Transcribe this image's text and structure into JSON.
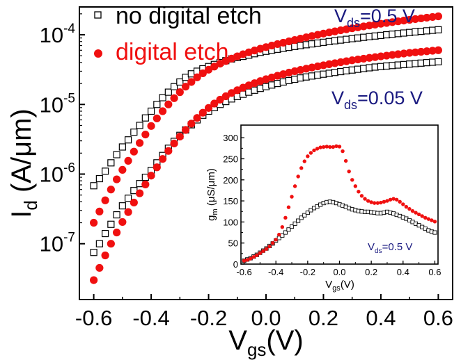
{
  "chart_data": [
    {
      "type": "scatter",
      "xlabel_main": "V",
      "xlabel_sub": "gs",
      "xlabel_unit": "(V)",
      "ylabel_main": "I",
      "ylabel_sub": "d",
      "ylabel_unit": " (A/μm)",
      "xlim": [
        -0.65,
        0.65
      ],
      "ylim": [
        1.58e-08,
        0.000251
      ],
      "yscale": "log",
      "x_ticks": [
        -0.6,
        -0.4,
        -0.2,
        0.0,
        0.2,
        0.4,
        0.6
      ],
      "x_tick_labels": [
        "-0.6",
        "-0.4",
        "-0.2",
        "0.0",
        "0.2",
        "0.4",
        "0.6"
      ],
      "y_ticks": [
        1e-07,
        1e-06,
        1e-05,
        0.0001
      ],
      "y_tick_mantissa": [
        "10",
        "10",
        "10",
        "10"
      ],
      "y_tick_exponent": [
        "-7",
        "-6",
        "-5",
        "-4"
      ],
      "legend_placement": "top-left",
      "annotations": [
        {
          "main": "V",
          "sub": "ds",
          "rest": "=0.5 V"
        },
        {
          "main": "V",
          "sub": "ds",
          "rest": "=0.05 V"
        }
      ],
      "series": [
        {
          "name": "no digital etch",
          "marker": "open-square",
          "color": "#000000",
          "curves": [
            {
              "vds": "0.5 V",
              "x": [
                -0.6,
                -0.58,
                -0.56,
                -0.54,
                -0.52,
                -0.5,
                -0.48,
                -0.46,
                -0.44,
                -0.42,
                -0.4,
                -0.38,
                -0.36,
                -0.34,
                -0.32,
                -0.3,
                -0.28,
                -0.26,
                -0.24,
                -0.22,
                -0.2,
                -0.18,
                -0.16,
                -0.14,
                -0.12,
                -0.1,
                -0.08,
                -0.06,
                -0.04,
                -0.02,
                0.0,
                0.02,
                0.04,
                0.06,
                0.08,
                0.1,
                0.12,
                0.14,
                0.16,
                0.18,
                0.2,
                0.22,
                0.24,
                0.26,
                0.28,
                0.3,
                0.32,
                0.34,
                0.36,
                0.38,
                0.4,
                0.42,
                0.44,
                0.46,
                0.48,
                0.5,
                0.52,
                0.54,
                0.56,
                0.58,
                0.6
              ],
              "y": [
                6.8e-07,
                8.6e-07,
                1.1e-06,
                1.45e-06,
                1.9e-06,
                2.45e-06,
                3.1e-06,
                4e-06,
                5e-06,
                6.4e-06,
                8e-06,
                1e-05,
                1.25e-05,
                1.5e-05,
                1.8e-05,
                2.1e-05,
                2.45e-05,
                2.75e-05,
                3e-05,
                3.25e-05,
                3.5e-05,
                3.75e-05,
                4e-05,
                4.25e-05,
                4.5e-05,
                4.7e-05,
                4.9e-05,
                5.1e-05,
                5.35e-05,
                5.6e-05,
                5.8e-05,
                6e-05,
                6.2e-05,
                6.4e-05,
                6.6e-05,
                6.8e-05,
                7e-05,
                7.2e-05,
                7.4e-05,
                7.6e-05,
                7.8e-05,
                8e-05,
                8.2e-05,
                8.4e-05,
                8.6e-05,
                8.8e-05,
                9e-05,
                9.2e-05,
                9.4e-05,
                9.6e-05,
                9.8e-05,
                0.0001,
                0.000102,
                0.000104,
                0.000106,
                0.000108,
                0.00011,
                0.000112,
                0.000114,
                0.000116,
                0.000118
              ]
            },
            {
              "vds": "0.05 V",
              "x": [
                -0.6,
                -0.58,
                -0.56,
                -0.54,
                -0.52,
                -0.5,
                -0.48,
                -0.46,
                -0.44,
                -0.42,
                -0.4,
                -0.38,
                -0.36,
                -0.34,
                -0.32,
                -0.3,
                -0.28,
                -0.26,
                -0.24,
                -0.22,
                -0.2,
                -0.18,
                -0.16,
                -0.14,
                -0.12,
                -0.1,
                -0.08,
                -0.06,
                -0.04,
                -0.02,
                0.0,
                0.02,
                0.04,
                0.06,
                0.08,
                0.1,
                0.12,
                0.14,
                0.16,
                0.18,
                0.2,
                0.22,
                0.24,
                0.26,
                0.28,
                0.3,
                0.32,
                0.34,
                0.36,
                0.38,
                0.4,
                0.42,
                0.44,
                0.46,
                0.48,
                0.5,
                0.52,
                0.54,
                0.56,
                0.58,
                0.6
              ],
              "y": [
                7.5e-08,
                1e-07,
                1.4e-07,
                1.9e-07,
                2.6e-07,
                3.5e-07,
                4.5e-07,
                5.8e-07,
                7.3e-07,
                9e-07,
                1.13e-06,
                1.45e-06,
                1.85e-06,
                2.35e-06,
                2.95e-06,
                3.6e-06,
                4.3e-06,
                5.1e-06,
                6e-06,
                7e-06,
                8e-06,
                9e-06,
                1e-05,
                1.1e-05,
                1.2e-05,
                1.3e-05,
                1.4e-05,
                1.5e-05,
                1.6e-05,
                1.7e-05,
                1.8e-05,
                1.9e-05,
                2e-05,
                2.1e-05,
                2.2e-05,
                2.3e-05,
                2.4e-05,
                2.48e-05,
                2.56e-05,
                2.64e-05,
                2.72e-05,
                2.8e-05,
                2.88e-05,
                2.96e-05,
                3.04e-05,
                3.12e-05,
                3.2e-05,
                3.28e-05,
                3.36e-05,
                3.44e-05,
                3.5e-05,
                3.56e-05,
                3.62e-05,
                3.68e-05,
                3.74e-05,
                3.8e-05,
                3.86e-05,
                3.92e-05,
                3.98e-05,
                4.04e-05,
                4.1e-05
              ]
            }
          ]
        },
        {
          "name": "digital etch",
          "marker": "filled-circle",
          "color": "#f01010",
          "curves": [
            {
              "vds": "0.5 V",
              "x": [
                -0.6,
                -0.58,
                -0.56,
                -0.54,
                -0.52,
                -0.5,
                -0.48,
                -0.46,
                -0.44,
                -0.42,
                -0.4,
                -0.38,
                -0.36,
                -0.34,
                -0.32,
                -0.3,
                -0.28,
                -0.26,
                -0.24,
                -0.22,
                -0.2,
                -0.18,
                -0.16,
                -0.14,
                -0.12,
                -0.1,
                -0.08,
                -0.06,
                -0.04,
                -0.02,
                0.0,
                0.02,
                0.04,
                0.06,
                0.08,
                0.1,
                0.12,
                0.14,
                0.16,
                0.18,
                0.2,
                0.22,
                0.24,
                0.26,
                0.28,
                0.3,
                0.32,
                0.34,
                0.36,
                0.38,
                0.4,
                0.42,
                0.44,
                0.46,
                0.48,
                0.5,
                0.52,
                0.54,
                0.56,
                0.58,
                0.6
              ],
              "y": [
                2e-07,
                2.9e-07,
                4.2e-07,
                6e-07,
                8.4e-07,
                1.15e-06,
                1.55e-06,
                2.1e-06,
                2.8e-06,
                3.7e-06,
                4.9e-06,
                6.3e-06,
                8e-06,
                1e-05,
                1.23e-05,
                1.5e-05,
                1.8e-05,
                2.1e-05,
                2.45e-05,
                2.8e-05,
                3.15e-05,
                3.5e-05,
                3.85e-05,
                4.2e-05,
                4.55e-05,
                4.9e-05,
                5.25e-05,
                5.6e-05,
                5.95e-05,
                6.3e-05,
                6.65e-05,
                7e-05,
                7.35e-05,
                7.7e-05,
                8.05e-05,
                8.4e-05,
                8.8e-05,
                9.2e-05,
                9.6e-05,
                0.0001,
                0.000104,
                0.000108,
                0.000112,
                0.000116,
                0.00012,
                0.000124,
                0.000128,
                0.000132,
                0.000136,
                0.00014,
                0.000144,
                0.000148,
                0.000152,
                0.000156,
                0.00016,
                0.000164,
                0.000168,
                0.000172,
                0.000176,
                0.00018,
                0.000184
              ]
            },
            {
              "vds": "0.05 V",
              "x": [
                -0.6,
                -0.58,
                -0.56,
                -0.54,
                -0.52,
                -0.5,
                -0.48,
                -0.46,
                -0.44,
                -0.42,
                -0.4,
                -0.38,
                -0.36,
                -0.34,
                -0.32,
                -0.3,
                -0.28,
                -0.26,
                -0.24,
                -0.22,
                -0.2,
                -0.18,
                -0.16,
                -0.14,
                -0.12,
                -0.1,
                -0.08,
                -0.06,
                -0.04,
                -0.02,
                0.0,
                0.02,
                0.04,
                0.06,
                0.08,
                0.1,
                0.12,
                0.14,
                0.16,
                0.18,
                0.2,
                0.22,
                0.24,
                0.26,
                0.28,
                0.3,
                0.32,
                0.34,
                0.36,
                0.38,
                0.4,
                0.42,
                0.44,
                0.46,
                0.48,
                0.5,
                0.52,
                0.54,
                0.56,
                0.58,
                0.6
              ],
              "y": [
                3e-08,
                4.5e-08,
                6.8e-08,
                1e-07,
                1.45e-07,
                2.05e-07,
                2.85e-07,
                3.9e-07,
                5.3e-07,
                7.1e-07,
                9.5e-07,
                1.25e-06,
                1.65e-06,
                2.15e-06,
                2.75e-06,
                3.45e-06,
                4.3e-06,
                5.3e-06,
                6.4e-06,
                7.6e-06,
                8.9e-06,
                1.03e-05,
                1.17e-05,
                1.31e-05,
                1.46e-05,
                1.6e-05,
                1.74e-05,
                1.88e-05,
                2.02e-05,
                2.16e-05,
                2.3e-05,
                2.44e-05,
                2.58e-05,
                2.72e-05,
                2.86e-05,
                3e-05,
                3.13e-05,
                3.26e-05,
                3.39e-05,
                3.52e-05,
                3.65e-05,
                3.78e-05,
                3.91e-05,
                4.04e-05,
                4.17e-05,
                4.3e-05,
                4.42e-05,
                4.54e-05,
                4.66e-05,
                4.78e-05,
                4.9e-05,
                5.02e-05,
                5.14e-05,
                5.26e-05,
                5.38e-05,
                5.5e-05,
                5.6e-05,
                5.7e-05,
                5.8e-05,
                5.9e-05,
                6e-05
              ]
            }
          ]
        }
      ]
    },
    {
      "type": "scatter",
      "xlabel_main": "V",
      "xlabel_sub": "gs",
      "xlabel_unit": "(V)",
      "ylabel_main": "g",
      "ylabel_sub": "m",
      "ylabel_unit": " (μS/μm)",
      "xlim": [
        -0.62,
        0.62
      ],
      "ylim": [
        0,
        330
      ],
      "x_ticks": [
        -0.6,
        -0.4,
        -0.2,
        0.0,
        0.2,
        0.4,
        0.6
      ],
      "x_tick_labels": [
        "-0.6",
        "-0.4",
        "-0.2",
        "0.0",
        "0.2",
        "0.4",
        "0.6"
      ],
      "y_ticks": [
        0,
        50,
        100,
        150,
        200,
        250,
        300
      ],
      "y_tick_labels": [
        "0",
        "50",
        "100",
        "150",
        "200",
        "250",
        "300"
      ],
      "annotation": {
        "main": "V",
        "sub": "ds",
        "rest": "=0.5 V"
      },
      "series": [
        {
          "name": "no digital etch",
          "marker": "open-square",
          "color": "#000000",
          "x": [
            -0.6,
            -0.58,
            -0.56,
            -0.54,
            -0.52,
            -0.5,
            -0.48,
            -0.46,
            -0.44,
            -0.42,
            -0.4,
            -0.38,
            -0.36,
            -0.34,
            -0.32,
            -0.3,
            -0.28,
            -0.26,
            -0.24,
            -0.22,
            -0.2,
            -0.18,
            -0.16,
            -0.14,
            -0.12,
            -0.1,
            -0.08,
            -0.06,
            -0.04,
            -0.02,
            0.0,
            0.02,
            0.04,
            0.06,
            0.08,
            0.1,
            0.12,
            0.14,
            0.16,
            0.18,
            0.2,
            0.22,
            0.24,
            0.26,
            0.28,
            0.3,
            0.32,
            0.34,
            0.36,
            0.38,
            0.4,
            0.42,
            0.44,
            0.46,
            0.48,
            0.5,
            0.52,
            0.54,
            0.56,
            0.58,
            0.6
          ],
          "y": [
            8,
            11,
            14,
            18,
            22,
            27,
            32,
            37,
            43,
            49,
            56,
            62,
            68,
            75,
            82,
            89,
            96,
            103,
            110,
            116,
            122,
            128,
            133,
            137,
            141,
            145,
            147,
            148,
            147,
            145,
            142,
            139,
            136,
            133,
            130,
            128,
            126,
            125,
            124,
            124,
            123,
            122,
            121,
            121,
            122,
            124,
            122,
            120,
            117,
            114,
            111,
            108,
            104,
            100,
            96,
            92,
            88,
            84,
            80,
            77,
            75
          ]
        },
        {
          "name": "digital etch",
          "marker": "filled-circle",
          "color": "#f01010",
          "x": [
            -0.6,
            -0.58,
            -0.56,
            -0.54,
            -0.52,
            -0.5,
            -0.48,
            -0.46,
            -0.44,
            -0.42,
            -0.4,
            -0.38,
            -0.36,
            -0.34,
            -0.32,
            -0.3,
            -0.28,
            -0.26,
            -0.24,
            -0.22,
            -0.2,
            -0.18,
            -0.16,
            -0.14,
            -0.12,
            -0.1,
            -0.08,
            -0.06,
            -0.04,
            -0.02,
            0.0,
            0.02,
            0.04,
            0.06,
            0.08,
            0.1,
            0.12,
            0.14,
            0.16,
            0.18,
            0.2,
            0.22,
            0.24,
            0.26,
            0.28,
            0.3,
            0.32,
            0.34,
            0.36,
            0.38,
            0.4,
            0.42,
            0.44,
            0.46,
            0.48,
            0.5,
            0.52,
            0.54,
            0.56,
            0.58,
            0.6
          ],
          "y": [
            8,
            10,
            13,
            17,
            21,
            26,
            31,
            36,
            42,
            50,
            58,
            70,
            88,
            110,
            135,
            160,
            185,
            208,
            228,
            244,
            256,
            264,
            270,
            274,
            277,
            278,
            279,
            278,
            278,
            280,
            279,
            268,
            245,
            220,
            200,
            185,
            172,
            162,
            155,
            150,
            147,
            145,
            145,
            146,
            148,
            150,
            153,
            155,
            153,
            148,
            142,
            136,
            131,
            126,
            122,
            118,
            114,
            110,
            107,
            104,
            101
          ]
        }
      ]
    }
  ]
}
